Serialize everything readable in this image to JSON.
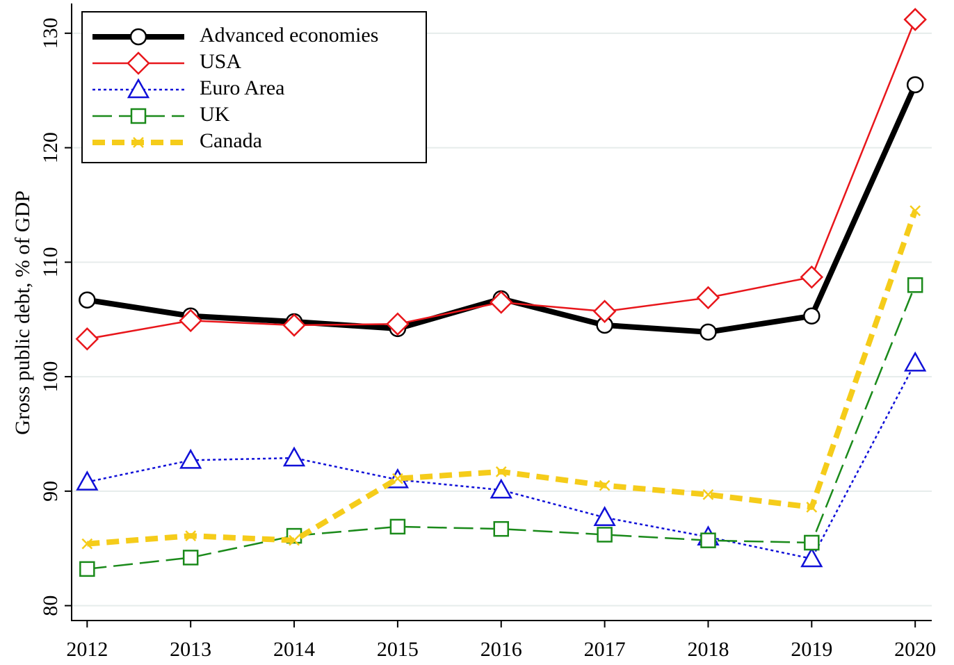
{
  "chart_data": {
    "type": "line",
    "y_label": "Gross public debt, % of GDP",
    "x": [
      2012,
      2013,
      2014,
      2015,
      2016,
      2017,
      2018,
      2019,
      2020
    ],
    "xlim": [
      2011.85,
      2020.16
    ],
    "xticks": [
      2012,
      2013,
      2014,
      2015,
      2016,
      2017,
      2018,
      2019,
      2020
    ],
    "ylim": [
      78.7,
      132.6
    ],
    "yticks": [
      80,
      90,
      100,
      110,
      120,
      130
    ],
    "grid": true,
    "legend": "top-left",
    "series": [
      {
        "name": "Advanced economies",
        "color": "#000000",
        "line_style": "solid",
        "marker": "circle",
        "values": [
          106.7,
          105.3,
          104.8,
          104.2,
          106.8,
          104.5,
          103.9,
          105.3,
          125.5
        ]
      },
      {
        "name": "USA",
        "color": "#e8161b",
        "line_style": "solid",
        "marker": "diamond",
        "values": [
          103.3,
          104.9,
          104.5,
          104.6,
          106.5,
          105.7,
          106.9,
          108.7,
          131.2
        ]
      },
      {
        "name": "Euro Area",
        "color": "#1010d8",
        "line_style": "dotted",
        "marker": "triangle",
        "values": [
          90.8,
          92.7,
          92.9,
          91.0,
          90.1,
          87.7,
          86.0,
          84.1,
          101.2
        ]
      },
      {
        "name": "UK",
        "color": "#1a8a1a",
        "line_style": "dashed",
        "marker": "square",
        "values": [
          83.2,
          84.2,
          86.1,
          86.9,
          86.7,
          86.2,
          85.7,
          85.5,
          108.0
        ]
      },
      {
        "name": "Canada",
        "color": "#f5cc1a",
        "line_style": "dashed",
        "marker": "x",
        "values": [
          85.4,
          86.1,
          85.7,
          91.1,
          91.7,
          90.5,
          89.7,
          88.6,
          114.5
        ]
      }
    ]
  }
}
